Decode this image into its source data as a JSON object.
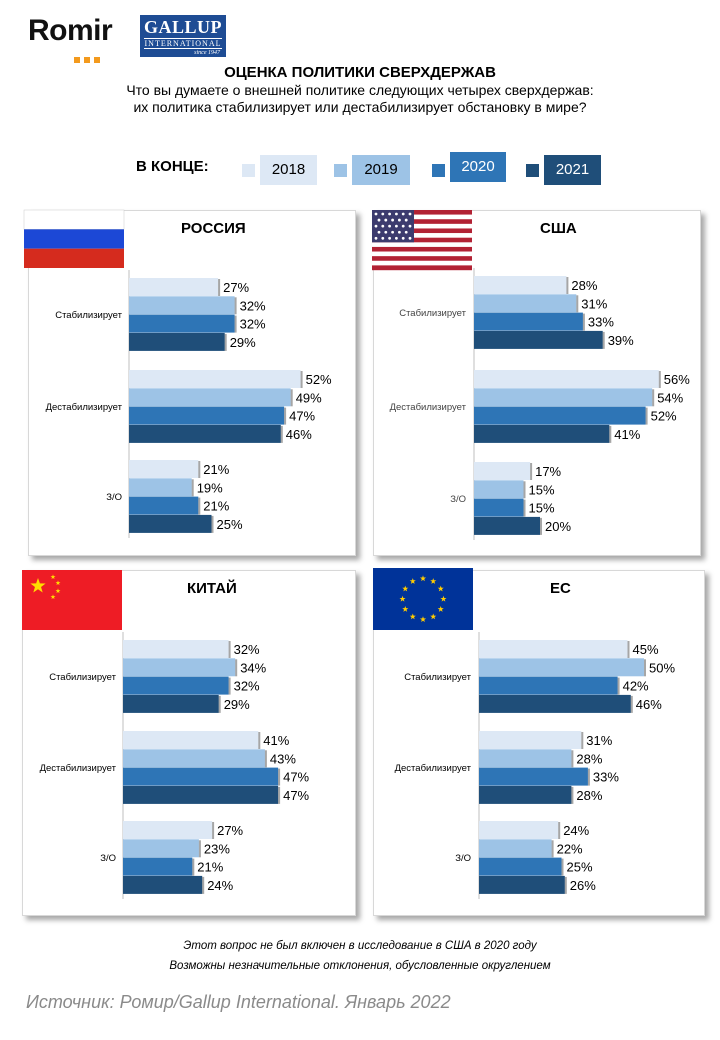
{
  "header": {
    "romir_logo": "Romir",
    "gallup_logo": {
      "line1": "GALLUP",
      "line2": "INTERNATIONAL",
      "line3": "since 1947"
    },
    "title": "ОЦЕНКА ПОЛИТИКИ СВЕРХДЕРЖАВ",
    "subtitle": "Что вы думаете о внешней политике следующих четырех сверхдержав:\nих политика стабилизирует или дестабилизирует обстановку в мире?"
  },
  "legend": {
    "label": "В КОНЦЕ:",
    "items": [
      {
        "year": "2018",
        "color": "#dde8f5"
      },
      {
        "year": "2019",
        "color": "#9dc3e6"
      },
      {
        "year": "2020",
        "color": "#2e75b6"
      },
      {
        "year": "2021",
        "color": "#1f4e79"
      }
    ]
  },
  "chart_data": [
    {
      "type": "bar",
      "title": "РОССИЯ",
      "flag": "russia-flag-icon",
      "categories": [
        "Стабилизирует",
        "Дестабилизирует",
        "З/О"
      ],
      "series": [
        {
          "name": "2018",
          "values": [
            27,
            52,
            21
          ]
        },
        {
          "name": "2019",
          "values": [
            32,
            49,
            19
          ]
        },
        {
          "name": "2020",
          "values": [
            32,
            47,
            21
          ]
        },
        {
          "name": "2021",
          "values": [
            29,
            46,
            25
          ]
        }
      ],
      "value_suffix": "%",
      "orientation": "horizontal"
    },
    {
      "type": "bar",
      "title": "США",
      "flag": "usa-flag-icon",
      "categories": [
        "Стабилизирует",
        "Дестабилизирует",
        "З/О"
      ],
      "series": [
        {
          "name": "2018",
          "values": [
            28,
            56,
            17
          ]
        },
        {
          "name": "2019",
          "values": [
            31,
            54,
            15
          ]
        },
        {
          "name": "2020",
          "values": [
            33,
            52,
            15
          ]
        },
        {
          "name": "2021",
          "values": [
            39,
            41,
            20
          ]
        }
      ],
      "value_suffix": "%",
      "orientation": "horizontal"
    },
    {
      "type": "bar",
      "title": "КИТАЙ",
      "flag": "china-flag-icon",
      "categories": [
        "Стабилизирует",
        "Дестабилизирует",
        "З/О"
      ],
      "series": [
        {
          "name": "2018",
          "values": [
            32,
            41,
            27
          ]
        },
        {
          "name": "2019",
          "values": [
            34,
            43,
            23
          ]
        },
        {
          "name": "2020",
          "values": [
            32,
            47,
            21
          ]
        },
        {
          "name": "2021",
          "values": [
            29,
            47,
            24
          ]
        }
      ],
      "value_suffix": "%",
      "orientation": "horizontal"
    },
    {
      "type": "bar",
      "title": "ЕС",
      "flag": "eu-flag-icon",
      "categories": [
        "Стабилизирует",
        "Дестабилизирует",
        "З/О"
      ],
      "series": [
        {
          "name": "2018",
          "values": [
            45,
            31,
            24
          ]
        },
        {
          "name": "2019",
          "values": [
            50,
            28,
            22
          ]
        },
        {
          "name": "2020",
          "values": [
            42,
            33,
            25
          ]
        },
        {
          "name": "2021",
          "values": [
            46,
            28,
            26
          ]
        }
      ],
      "value_suffix": "%",
      "orientation": "horizontal"
    }
  ],
  "notes": [
    "Этот вопрос не был включен в исследование в США в 2020 году",
    "Возможны незначительные отклонения, обусловленные округлением"
  ],
  "source": "Источник: Ромир/Gallup International. Январь 2022"
}
